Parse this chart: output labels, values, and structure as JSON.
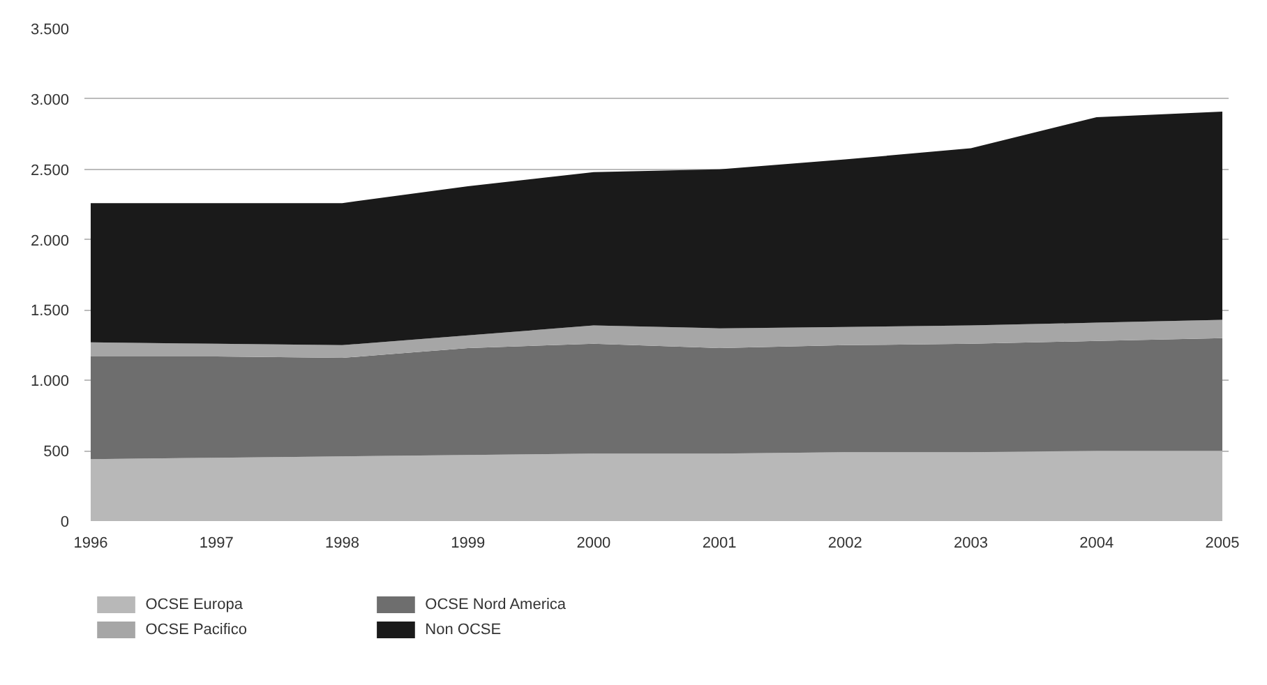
{
  "chart_data": {
    "type": "area",
    "stacked": true,
    "categories": [
      "1996",
      "1997",
      "1998",
      "1999",
      "2000",
      "2001",
      "2002",
      "2003",
      "2004",
      "2005"
    ],
    "series": [
      {
        "name": "OCSE Europa",
        "color": "#b8b8b8",
        "values": [
          440,
          450,
          460,
          470,
          480,
          480,
          490,
          490,
          500,
          500
        ]
      },
      {
        "name": "OCSE Nord America",
        "color": "#6e6e6e",
        "values": [
          730,
          720,
          700,
          760,
          780,
          750,
          760,
          770,
          780,
          800
        ]
      },
      {
        "name": "OCSE Pacifico",
        "color": "#a6a6a6",
        "values": [
          100,
          90,
          90,
          90,
          130,
          140,
          130,
          130,
          130,
          130
        ]
      },
      {
        "name": "Non OCSE",
        "color": "#1a1a1a",
        "values": [
          990,
          1000,
          1010,
          1060,
          1090,
          1130,
          1190,
          1260,
          1460,
          1480
        ]
      }
    ],
    "ylim": [
      0,
      3500
    ],
    "yticks": [
      {
        "value": 0,
        "label": "0"
      },
      {
        "value": 500,
        "label": "500"
      },
      {
        "value": 1000,
        "label": "1.000"
      },
      {
        "value": 1500,
        "label": "1.500"
      },
      {
        "value": 2000,
        "label": "2.000"
      },
      {
        "value": 2500,
        "label": "2.500"
      },
      {
        "value": 3000,
        "label": "3.000"
      },
      {
        "value": 3500,
        "label": "3.500"
      }
    ],
    "grid": "y",
    "legend": "bottom left"
  }
}
